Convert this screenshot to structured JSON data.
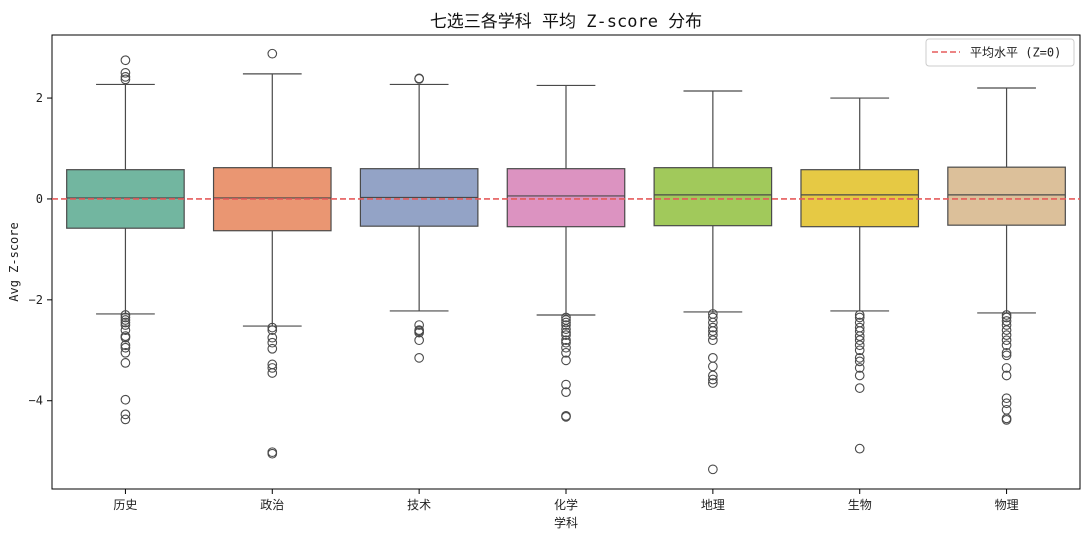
{
  "chart_data": {
    "type": "box",
    "title": "七选三各学科 平均 Z-score 分布",
    "xlabel": "学科",
    "ylabel": "Avg Z-score",
    "ylim": [
      -5.75,
      3.25
    ],
    "yticks": [
      2,
      0,
      -2,
      -4
    ],
    "ytick_labels": [
      "2",
      "0",
      "−2",
      "−4"
    ],
    "grid": false,
    "legend": {
      "position": "top-right",
      "entries": [
        {
          "label": "平均水平 (Z=0)",
          "color": "#e55b5b",
          "style": "dashed"
        }
      ]
    },
    "reference_line": {
      "y": 0,
      "color": "#e55b5b"
    },
    "categories": [
      "历史",
      "政治",
      "技术",
      "化学",
      "地理",
      "生物",
      "物理"
    ],
    "boxes": [
      {
        "name": "历史",
        "color": "#72b6a0",
        "q1": -0.58,
        "median": 0.02,
        "q3": 0.58,
        "whisker_low": -2.28,
        "whisker_high": 2.27,
        "outliers_high": [
          2.75,
          2.5,
          2.42,
          2.37
        ],
        "outliers_low": [
          -2.3,
          -2.35,
          -2.4,
          -2.45,
          -2.5,
          -2.6,
          -2.72,
          -2.75,
          -2.9,
          -2.95,
          -3.05,
          -3.25,
          -3.98,
          -4.27,
          -4.37
        ]
      },
      {
        "name": "政治",
        "color": "#ea9672",
        "q1": -0.63,
        "median": 0.02,
        "q3": 0.62,
        "whisker_low": -2.52,
        "whisker_high": 2.48,
        "outliers_high": [
          2.88
        ],
        "outliers_low": [
          -2.55,
          -2.6,
          -2.75,
          -2.85,
          -2.97,
          -3.28,
          -3.35,
          -3.45,
          -5.02,
          -5.05
        ]
      },
      {
        "name": "技术",
        "color": "#93a3c6",
        "q1": -0.54,
        "median": 0.03,
        "q3": 0.6,
        "whisker_low": -2.22,
        "whisker_high": 2.27,
        "outliers_high": [
          2.38,
          2.39
        ],
        "outliers_low": [
          -2.5,
          -2.6,
          -2.62,
          -2.65,
          -2.8,
          -3.15
        ]
      },
      {
        "name": "化学",
        "color": "#dc93c1",
        "q1": -0.55,
        "median": 0.06,
        "q3": 0.6,
        "whisker_low": -2.3,
        "whisker_high": 2.25,
        "outliers_high": [],
        "outliers_low": [
          -2.35,
          -2.4,
          -2.45,
          -2.5,
          -2.58,
          -2.65,
          -2.7,
          -2.8,
          -2.85,
          -2.95,
          -3.05,
          -3.2,
          -3.68,
          -3.83,
          -4.3,
          -4.32
        ]
      },
      {
        "name": "地理",
        "color": "#a1c95b",
        "q1": -0.53,
        "median": 0.08,
        "q3": 0.62,
        "whisker_low": -2.24,
        "whisker_high": 2.14,
        "outliers_high": [],
        "outliers_low": [
          -2.28,
          -2.35,
          -2.45,
          -2.55,
          -2.62,
          -2.7,
          -2.8,
          -3.15,
          -3.32,
          -3.5,
          -3.58,
          -3.65,
          -5.36
        ]
      },
      {
        "name": "生物",
        "color": "#e6c944",
        "q1": -0.55,
        "median": 0.08,
        "q3": 0.58,
        "whisker_low": -2.22,
        "whisker_high": 2.0,
        "outliers_high": [],
        "outliers_low": [
          -2.3,
          -2.35,
          -2.45,
          -2.55,
          -2.62,
          -2.72,
          -2.8,
          -2.9,
          -3.0,
          -3.15,
          -3.22,
          -3.35,
          -3.5,
          -3.75,
          -4.95
        ]
      },
      {
        "name": "物理",
        "color": "#dcc09a",
        "q1": -0.52,
        "median": 0.08,
        "q3": 0.63,
        "whisker_low": -2.26,
        "whisker_high": 2.2,
        "outliers_high": [],
        "outliers_low": [
          -2.3,
          -2.35,
          -2.42,
          -2.5,
          -2.6,
          -2.7,
          -2.8,
          -2.9,
          -3.05,
          -3.1,
          -3.35,
          -3.5,
          -3.95,
          -4.05,
          -4.18,
          -4.35,
          -4.38
        ]
      }
    ]
  }
}
